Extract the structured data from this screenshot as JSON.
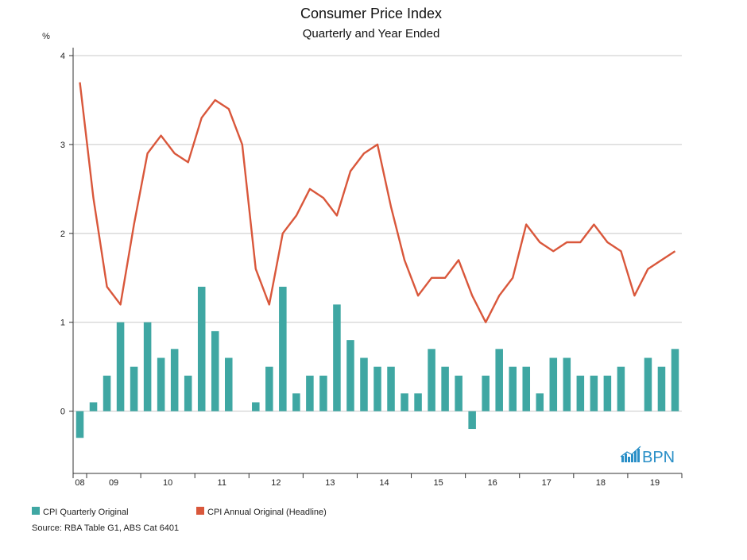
{
  "chart_data": {
    "type": "bar",
    "title": "Consumer Price Index",
    "subtitle": "Quarterly and Year Ended",
    "ylabel": "%",
    "ylim": [
      -0.7,
      4
    ],
    "yticks": [
      "0",
      "1",
      "2",
      "3",
      "4"
    ],
    "x_tick_labels": [
      "08",
      "09",
      "10",
      "11",
      "12",
      "13",
      "14",
      "15",
      "16",
      "17",
      "18",
      "19"
    ],
    "periods": 45,
    "series": [
      {
        "name": "CPI Quarterly Original",
        "type": "bar",
        "color": "#3fa7a3",
        "values": [
          -0.3,
          0.1,
          0.4,
          1.0,
          0.5,
          1.0,
          0.6,
          0.7,
          0.4,
          1.4,
          0.9,
          0.6,
          null,
          0.1,
          0.5,
          1.4,
          0.2,
          0.4,
          0.4,
          1.2,
          0.8,
          0.6,
          0.5,
          0.5,
          0.2,
          0.2,
          0.7,
          0.5,
          0.4,
          -0.2,
          0.4,
          0.7,
          0.5,
          0.5,
          0.2,
          0.6,
          0.6,
          0.4,
          0.4,
          0.4,
          0.5,
          null,
          0.6,
          0.5,
          0.7
        ]
      },
      {
        "name": "CPI Annual Original (Headline)",
        "type": "line",
        "color": "#d9573b",
        "values": [
          3.7,
          2.4,
          1.4,
          1.2,
          2.1,
          2.9,
          3.1,
          2.9,
          2.8,
          3.3,
          3.5,
          3.4,
          3.0,
          1.6,
          1.2,
          2.0,
          2.2,
          2.5,
          2.4,
          2.2,
          2.7,
          2.9,
          3.0,
          2.3,
          1.7,
          1.3,
          1.5,
          1.5,
          1.7,
          1.3,
          1.0,
          1.3,
          1.5,
          2.1,
          1.9,
          1.8,
          1.9,
          1.9,
          2.1,
          1.9,
          1.8,
          1.3,
          1.6,
          1.7,
          1.8
        ]
      }
    ],
    "legend_position": "bottom-left",
    "grid": true,
    "source": "Source: RBA Table G1, ABS Cat 6401",
    "logo": "BPN"
  }
}
